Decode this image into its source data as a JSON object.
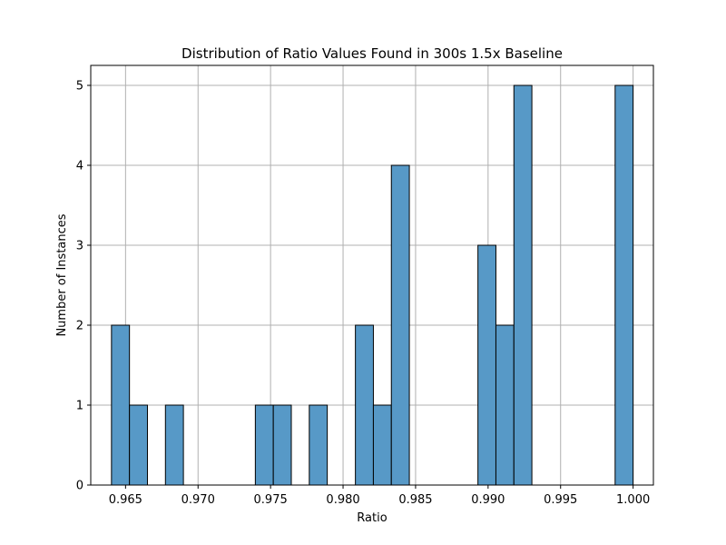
{
  "chart_data": {
    "type": "bar",
    "title": "Distribution of Ratio Values Found in 300s 1.5x Baseline",
    "xlabel": "Ratio",
    "ylabel": "Number of Instances",
    "xlim": [
      0.9626,
      1.0014
    ],
    "ylim": [
      0,
      5.25
    ],
    "grid": true,
    "bar_color": "#5799c7",
    "edge_color": "#000000",
    "grid_color": "#b0b0b0",
    "x_ticks": [
      {
        "value": 0.965,
        "label": "0.965"
      },
      {
        "value": 0.97,
        "label": "0.970"
      },
      {
        "value": 0.975,
        "label": "0.975"
      },
      {
        "value": 0.98,
        "label": "0.980"
      },
      {
        "value": 0.985,
        "label": "0.985"
      },
      {
        "value": 0.99,
        "label": "0.990"
      },
      {
        "value": 0.995,
        "label": "0.995"
      },
      {
        "value": 1.0,
        "label": "1.000"
      }
    ],
    "y_ticks": [
      {
        "value": 0,
        "label": "0"
      },
      {
        "value": 1,
        "label": "1"
      },
      {
        "value": 2,
        "label": "2"
      },
      {
        "value": 3,
        "label": "3"
      },
      {
        "value": 4,
        "label": "4"
      },
      {
        "value": 5,
        "label": "5"
      }
    ],
    "bins": [
      {
        "x0": 0.96403,
        "x1": 0.96527,
        "count": 2
      },
      {
        "x0": 0.96527,
        "x1": 0.96651,
        "count": 1
      },
      {
        "x0": 0.96775,
        "x1": 0.96899,
        "count": 1
      },
      {
        "x0": 0.97395,
        "x1": 0.97519,
        "count": 1
      },
      {
        "x0": 0.97519,
        "x1": 0.97643,
        "count": 1
      },
      {
        "x0": 0.97767,
        "x1": 0.97891,
        "count": 1
      },
      {
        "x0": 0.98085,
        "x1": 0.98209,
        "count": 2
      },
      {
        "x0": 0.98209,
        "x1": 0.98333,
        "count": 1
      },
      {
        "x0": 0.98333,
        "x1": 0.98457,
        "count": 4
      },
      {
        "x0": 0.9893,
        "x1": 0.99054,
        "count": 3
      },
      {
        "x0": 0.99054,
        "x1": 0.99178,
        "count": 2
      },
      {
        "x0": 0.99178,
        "x1": 0.99302,
        "count": 5
      },
      {
        "x0": 0.99876,
        "x1": 1.0,
        "count": 5
      }
    ]
  }
}
